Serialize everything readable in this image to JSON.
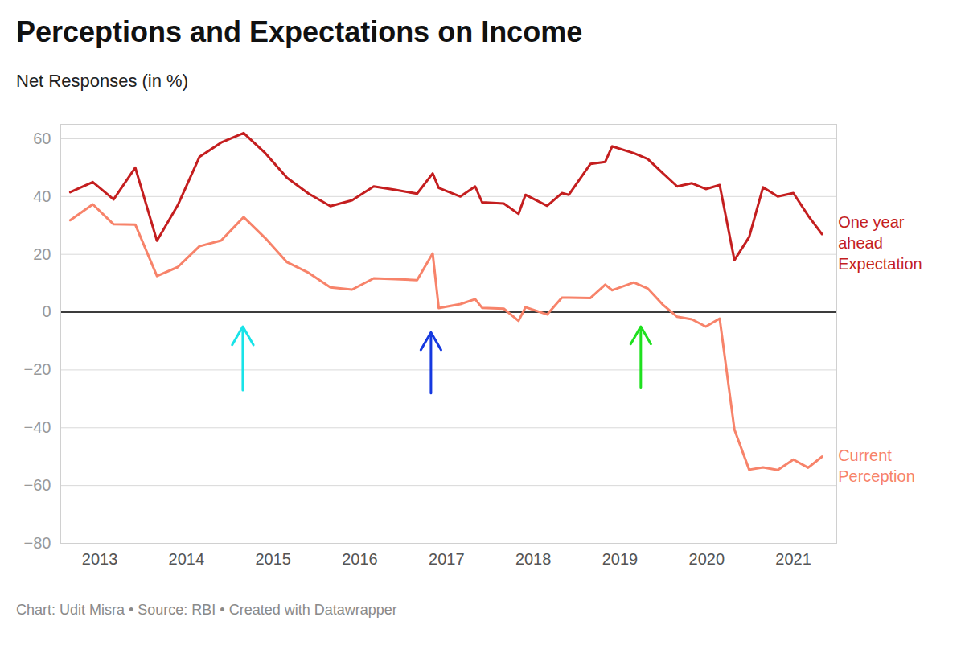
{
  "chart_data": {
    "type": "line",
    "title": "Perceptions and Expectations on Income",
    "subtitle": "Net Responses (in %)",
    "caption": "Chart: Udit Misra • Source: RBI • Created with Datawrapper",
    "x": [
      2012.66,
      2012.92,
      2013.16,
      2013.41,
      2013.66,
      2013.9,
      2014.15,
      2014.4,
      2014.66,
      2014.91,
      2015.16,
      2015.41,
      2015.66,
      2015.91,
      2016.16,
      2016.41,
      2016.66,
      2016.84,
      2016.91,
      2017.16,
      2017.33,
      2017.41,
      2017.66,
      2017.83,
      2017.91,
      2018.16,
      2018.33,
      2018.41,
      2018.66,
      2018.83,
      2018.91,
      2019.16,
      2019.32,
      2019.49,
      2019.66,
      2019.83,
      2019.99,
      2020.15,
      2020.32,
      2020.49,
      2020.65,
      2020.82,
      2021.0,
      2021.17,
      2021.33
    ],
    "series": [
      {
        "name": "One year ahead Expectation",
        "color": "#c41e1f",
        "values": [
          41.5,
          45,
          39,
          50,
          24.7,
          37,
          53.7,
          58.7,
          62,
          55,
          46.5,
          41,
          36.7,
          38.7,
          43.5,
          42.3,
          41,
          48,
          43,
          40,
          43.5,
          38,
          37.6,
          34,
          40.6,
          36.8,
          41.2,
          40.6,
          51.3,
          52,
          57.4,
          55,
          53,
          48.2,
          43.5,
          44.6,
          42.6,
          44,
          18,
          26,
          43.2,
          40,
          41.2,
          33.4,
          27
        ]
      },
      {
        "name": "Current Perception",
        "color": "#f7836a",
        "values": [
          31.8,
          37.3,
          30.4,
          30.3,
          12.5,
          15.6,
          22.8,
          24.8,
          32.9,
          25.6,
          17.3,
          13.6,
          8.6,
          7.8,
          11.7,
          11.4,
          11.1,
          20.3,
          1.4,
          2.8,
          4.5,
          1.5,
          1.2,
          -3,
          1.7,
          -0.8,
          5,
          5,
          4.9,
          9.5,
          7.6,
          10.3,
          8.2,
          2.7,
          -1.6,
          -2.5,
          -5,
          -2.2,
          -40.6,
          -54.5,
          -53.7,
          -54.6,
          -51,
          -53.8,
          -50
        ]
      }
    ],
    "xlim": [
      2012.55,
      2021.5
    ],
    "xticks": [
      2013,
      2014,
      2015,
      2016,
      2017,
      2018,
      2019,
      2020,
      2021
    ],
    "ylim": [
      -80,
      65
    ],
    "yticks": [
      {
        "value": -80,
        "label": "−80"
      },
      {
        "value": -60,
        "label": "−60"
      },
      {
        "value": -40,
        "label": "−40"
      },
      {
        "value": -20,
        "label": "−20"
      },
      0,
      20,
      40,
      60
    ],
    "grid": true,
    "arrows": [
      {
        "x": 2014.65,
        "y1": -27,
        "y2": -5,
        "color": "#19e3e8"
      },
      {
        "x": 2016.82,
        "y1": -28,
        "y2": -7,
        "color": "#1639e0"
      },
      {
        "x": 2019.24,
        "y1": -26,
        "y2": -5,
        "color": "#1fe01f"
      }
    ]
  }
}
